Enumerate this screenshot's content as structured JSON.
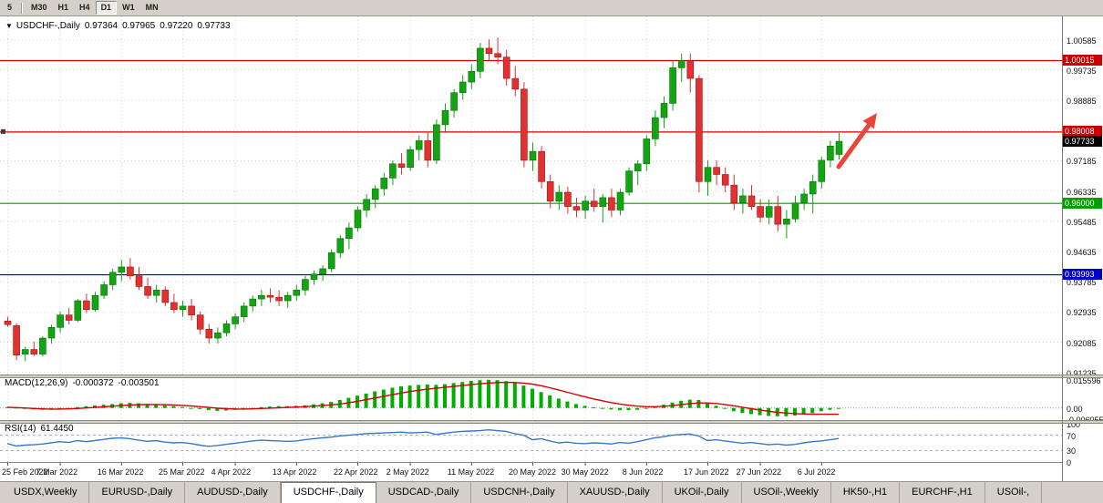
{
  "toolbar": {
    "timeframes": [
      "5",
      "M30",
      "H1",
      "H4",
      "D1",
      "W1",
      "MN"
    ],
    "active": "D1"
  },
  "chart": {
    "symbol_title": "USDCHF-,Daily",
    "open": "0.97364",
    "high": "0.97965",
    "low": "0.97220",
    "close": "0.97733",
    "dropdown_icon": "▼"
  },
  "price_axis": {
    "grid_labels": [
      "1.00585",
      "0.99735",
      "0.98885",
      "0.98035",
      "0.97185",
      "0.96335",
      "0.95485",
      "0.94635",
      "0.93785",
      "0.92935",
      "0.92085",
      "0.91235"
    ]
  },
  "levels": [
    {
      "label": "1.00015",
      "value": 1.00015,
      "color": "#cc0000",
      "type": "resistance"
    },
    {
      "label": "0.98008",
      "value": 0.98008,
      "color": "#cc0000",
      "type": "resistance"
    },
    {
      "label": "0.97733",
      "value": 0.97733,
      "color": "#000000",
      "type": "current"
    },
    {
      "label": "0.96000",
      "value": 0.96,
      "color": "#00a000",
      "type": "support"
    },
    {
      "label": "0.93993",
      "value": 0.93993,
      "color": "#0000cc",
      "type": "support"
    }
  ],
  "macd": {
    "name": "MACD(12,26,9)",
    "value_main": "-0.000372",
    "value_signal": "-0.003501",
    "axis_labels": [
      "0.015596",
      "0.00",
      "-0.006055"
    ]
  },
  "rsi": {
    "name": "RSI(14)",
    "value": "61.4450",
    "axis_labels": [
      "100",
      "70",
      "30",
      "0"
    ]
  },
  "tabs": [
    {
      "label": "USDX,Weekly",
      "active": false
    },
    {
      "label": "EURUSD-,Daily",
      "active": false
    },
    {
      "label": "AUDUSD-,Daily",
      "active": false
    },
    {
      "label": "USDCHF-,Daily",
      "active": true
    },
    {
      "label": "USDCAD-,Daily",
      "active": false
    },
    {
      "label": "USDCNH-,Daily",
      "active": false
    },
    {
      "label": "XAUUSD-,Daily",
      "active": false
    },
    {
      "label": "UKOil-,Daily",
      "active": false
    },
    {
      "label": "USOil-,Weekly",
      "active": false
    },
    {
      "label": "HK50-,H1",
      "active": false
    },
    {
      "label": "EURCHF-,H1",
      "active": false
    },
    {
      "label": "USOil-,",
      "active": false
    }
  ],
  "annotations": {
    "trend_arrow": {
      "color": "#e8453c",
      "direction": "up-right"
    }
  },
  "colors": {
    "bull": "#13a313",
    "bear": "#e23131",
    "bull_border": "#077407",
    "bear_border": "#9c1616",
    "macd_hist": "#00ae00",
    "macd_signal": "#d40000",
    "rsi_line": "#3a79c9",
    "grid": "#d2d2d2"
  },
  "chart_data": {
    "type": "candlestick",
    "symbol": "USDCHF-",
    "timeframe": "Daily",
    "y_axis_range": [
      0.9115,
      1.0125
    ],
    "x_tick_labels": [
      "25 Feb 2022",
      "7 Mar 2022",
      "16 Mar 2022",
      "25 Mar 2022",
      "4 Apr 2022",
      "13 Apr 2022",
      "22 Apr 2022",
      "2 May 2022",
      "11 May 2022",
      "20 May 2022",
      "30 May 2022",
      "8 Jun 2022",
      "17 Jun 2022",
      "27 Jun 2022",
      "6 Jul 2022"
    ],
    "x_tick_indices": [
      0,
      6,
      13,
      20,
      26,
      33,
      40,
      46,
      53,
      60,
      66,
      73,
      80,
      86,
      93
    ],
    "horizontal_lines": [
      1.00015,
      0.98008,
      0.96,
      0.93993
    ],
    "candles_ohlc": [
      [
        0.9268,
        0.928,
        0.9252,
        0.9258
      ],
      [
        0.9255,
        0.9262,
        0.9158,
        0.9172
      ],
      [
        0.9175,
        0.9196,
        0.9155,
        0.9188
      ],
      [
        0.9188,
        0.921,
        0.917,
        0.9175
      ],
      [
        0.9175,
        0.9225,
        0.9168,
        0.922
      ],
      [
        0.922,
        0.9258,
        0.9205,
        0.925
      ],
      [
        0.925,
        0.9295,
        0.9235,
        0.9285
      ],
      [
        0.9285,
        0.9305,
        0.9258,
        0.927
      ],
      [
        0.927,
        0.933,
        0.9265,
        0.9325
      ],
      [
        0.9325,
        0.9345,
        0.929,
        0.93
      ],
      [
        0.93,
        0.935,
        0.9295,
        0.934
      ],
      [
        0.934,
        0.938,
        0.933,
        0.937
      ],
      [
        0.937,
        0.9415,
        0.9355,
        0.9405
      ],
      [
        0.9405,
        0.944,
        0.938,
        0.942
      ],
      [
        0.942,
        0.9445,
        0.9385,
        0.9395
      ],
      [
        0.9395,
        0.942,
        0.9355,
        0.9365
      ],
      [
        0.9365,
        0.939,
        0.933,
        0.934
      ],
      [
        0.934,
        0.937,
        0.932,
        0.9355
      ],
      [
        0.9355,
        0.9365,
        0.931,
        0.932
      ],
      [
        0.932,
        0.9345,
        0.929,
        0.93
      ],
      [
        0.93,
        0.9325,
        0.928,
        0.931
      ],
      [
        0.931,
        0.933,
        0.927,
        0.9285
      ],
      [
        0.9285,
        0.9295,
        0.923,
        0.9245
      ],
      [
        0.9245,
        0.926,
        0.9205,
        0.922
      ],
      [
        0.922,
        0.925,
        0.9205,
        0.9235
      ],
      [
        0.9235,
        0.927,
        0.9225,
        0.926
      ],
      [
        0.926,
        0.929,
        0.9245,
        0.928
      ],
      [
        0.928,
        0.932,
        0.9265,
        0.931
      ],
      [
        0.931,
        0.934,
        0.9295,
        0.933
      ],
      [
        0.933,
        0.9355,
        0.931,
        0.934
      ],
      [
        0.934,
        0.936,
        0.932,
        0.9335
      ],
      [
        0.9335,
        0.9355,
        0.931,
        0.9325
      ],
      [
        0.9325,
        0.935,
        0.9305,
        0.934
      ],
      [
        0.934,
        0.937,
        0.9325,
        0.9355
      ],
      [
        0.9355,
        0.9395,
        0.934,
        0.9385
      ],
      [
        0.9385,
        0.941,
        0.937,
        0.94
      ],
      [
        0.94,
        0.9425,
        0.938,
        0.9415
      ],
      [
        0.9415,
        0.947,
        0.9405,
        0.946
      ],
      [
        0.946,
        0.951,
        0.9445,
        0.95
      ],
      [
        0.95,
        0.9545,
        0.947,
        0.953
      ],
      [
        0.953,
        0.959,
        0.952,
        0.958
      ],
      [
        0.958,
        0.9625,
        0.956,
        0.961
      ],
      [
        0.961,
        0.965,
        0.9585,
        0.964
      ],
      [
        0.964,
        0.9685,
        0.962,
        0.967
      ],
      [
        0.967,
        0.972,
        0.965,
        0.971
      ],
      [
        0.971,
        0.974,
        0.968,
        0.97
      ],
      [
        0.97,
        0.976,
        0.969,
        0.975
      ],
      [
        0.975,
        0.979,
        0.972,
        0.9775
      ],
      [
        0.9775,
        0.98,
        0.97,
        0.972
      ],
      [
        0.972,
        0.9835,
        0.971,
        0.982
      ],
      [
        0.982,
        0.988,
        0.98,
        0.986
      ],
      [
        0.986,
        0.992,
        0.984,
        0.991
      ],
      [
        0.991,
        0.996,
        0.989,
        0.994
      ],
      [
        0.994,
        0.999,
        0.992,
        0.997
      ],
      [
        0.997,
        1.005,
        0.995,
        1.0035
      ],
      [
        1.0035,
        1.006,
        1.0,
        1.002
      ],
      [
        1.002,
        1.0065,
        0.999,
        1.001
      ],
      [
        1.001,
        1.003,
        0.993,
        0.995
      ],
      [
        0.995,
        0.9985,
        0.99,
        0.992
      ],
      [
        0.992,
        0.994,
        0.97,
        0.972
      ],
      [
        0.972,
        0.977,
        0.969,
        0.9745
      ],
      [
        0.9745,
        0.976,
        0.964,
        0.966
      ],
      [
        0.966,
        0.968,
        0.9585,
        0.9605
      ],
      [
        0.9605,
        0.965,
        0.958,
        0.963
      ],
      [
        0.963,
        0.9645,
        0.957,
        0.959
      ],
      [
        0.959,
        0.9615,
        0.956,
        0.958
      ],
      [
        0.958,
        0.962,
        0.9555,
        0.9605
      ],
      [
        0.9605,
        0.964,
        0.9575,
        0.959
      ],
      [
        0.959,
        0.9625,
        0.9545,
        0.9615
      ],
      [
        0.9615,
        0.964,
        0.956,
        0.958
      ],
      [
        0.958,
        0.964,
        0.9565,
        0.963
      ],
      [
        0.963,
        0.97,
        0.962,
        0.969
      ],
      [
        0.969,
        0.972,
        0.965,
        0.971
      ],
      [
        0.971,
        0.979,
        0.969,
        0.978
      ],
      [
        0.978,
        0.986,
        0.976,
        0.984
      ],
      [
        0.984,
        0.99,
        0.981,
        0.988
      ],
      [
        0.988,
        1.0,
        0.986,
        0.998
      ],
      [
        0.998,
        1.002,
        0.994,
        1.0
      ],
      [
        1.0,
        1.002,
        0.991,
        0.995
      ],
      [
        0.995,
        0.996,
        0.963,
        0.966
      ],
      [
        0.966,
        0.972,
        0.962,
        0.97
      ],
      [
        0.97,
        0.972,
        0.965,
        0.968
      ],
      [
        0.968,
        0.97,
        0.963,
        0.965
      ],
      [
        0.965,
        0.968,
        0.958,
        0.96
      ],
      [
        0.96,
        0.964,
        0.957,
        0.962
      ],
      [
        0.962,
        0.965,
        0.958,
        0.959
      ],
      [
        0.959,
        0.961,
        0.9545,
        0.956
      ],
      [
        0.956,
        0.961,
        0.954,
        0.959
      ],
      [
        0.959,
        0.962,
        0.952,
        0.954
      ],
      [
        0.954,
        0.958,
        0.95,
        0.9555
      ],
      [
        0.9555,
        0.962,
        0.9545,
        0.96
      ],
      [
        0.96,
        0.964,
        0.958,
        0.9625
      ],
      [
        0.9625,
        0.968,
        0.957,
        0.966
      ],
      [
        0.966,
        0.973,
        0.964,
        0.972
      ],
      [
        0.972,
        0.9775,
        0.97,
        0.976
      ],
      [
        0.97364,
        0.97965,
        0.9722,
        0.97733
      ]
    ],
    "indicators": {
      "macd": {
        "histogram": [
          0.0005,
          0.0002,
          -0.0003,
          -0.0008,
          -0.001,
          -0.0008,
          -0.0004,
          0.0,
          0.0005,
          0.001,
          0.0014,
          0.0018,
          0.0022,
          0.0026,
          0.0028,
          0.0026,
          0.0022,
          0.0018,
          0.0014,
          0.001,
          0.0005,
          0.0,
          -0.0006,
          -0.0012,
          -0.0016,
          -0.0014,
          -0.001,
          -0.0005,
          0.0,
          0.0005,
          0.0008,
          0.001,
          0.001,
          0.0012,
          0.0015,
          0.002,
          0.0026,
          0.0034,
          0.0044,
          0.0056,
          0.0068,
          0.008,
          0.0092,
          0.0102,
          0.0112,
          0.012,
          0.0124,
          0.0128,
          0.013,
          0.0128,
          0.0132,
          0.0138,
          0.0144,
          0.015,
          0.0154,
          0.0156,
          0.0154,
          0.0148,
          0.0138,
          0.0124,
          0.0106,
          0.0088,
          0.007,
          0.0052,
          0.0036,
          0.0022,
          0.0012,
          0.0004,
          -0.0002,
          -0.0008,
          -0.0012,
          -0.0012,
          -0.001,
          -0.0004,
          0.0006,
          0.0018,
          0.003,
          0.004,
          0.0046,
          0.0044,
          0.003,
          0.0012,
          -0.0004,
          -0.0018,
          -0.0028,
          -0.0034,
          -0.004,
          -0.0044,
          -0.0046,
          -0.0046,
          -0.0042,
          -0.0036,
          -0.0028,
          -0.0018,
          -0.001,
          -0.000372
        ],
        "signal": [
          0.0004,
          0.0002,
          0.0,
          -0.0003,
          -0.0005,
          -0.0007,
          -0.0006,
          -0.0005,
          -0.0003,
          0.0,
          0.0003,
          0.0006,
          0.001,
          0.0013,
          0.0016,
          0.0018,
          0.0019,
          0.0019,
          0.0018,
          0.0016,
          0.0014,
          0.0011,
          0.0007,
          0.0003,
          -0.0001,
          -0.0004,
          -0.0006,
          -0.0006,
          -0.0005,
          -0.0003,
          -0.0001,
          0.0001,
          0.0003,
          0.0005,
          0.0007,
          0.001,
          0.0013,
          0.0017,
          0.0022,
          0.0029,
          0.0037,
          0.0046,
          0.0055,
          0.0064,
          0.0074,
          0.0083,
          0.0091,
          0.0098,
          0.0104,
          0.0109,
          0.0114,
          0.0119,
          0.0124,
          0.0129,
          0.0134,
          0.0138,
          0.0141,
          0.0142,
          0.0141,
          0.0138,
          0.0132,
          0.0123,
          0.0112,
          0.01,
          0.0087,
          0.0074,
          0.0062,
          0.005,
          0.004,
          0.003,
          0.0022,
          0.0015,
          0.001,
          0.0007,
          0.0007,
          0.0009,
          0.0013,
          0.0018,
          0.0024,
          0.0028,
          0.0028,
          0.0025,
          0.0019,
          0.0012,
          0.0004,
          -0.0004,
          -0.0011,
          -0.0018,
          -0.0024,
          -0.0028,
          -0.0031,
          -0.0033,
          -0.0034,
          -0.0035,
          -0.0035,
          -0.003501
        ]
      },
      "rsi": {
        "values": [
          48,
          42,
          44,
          45,
          47,
          50,
          53,
          51,
          56,
          53,
          56,
          59,
          62,
          63,
          61,
          57,
          54,
          56,
          52,
          50,
          51,
          48,
          44,
          41,
          43,
          46,
          49,
          52,
          55,
          57,
          56,
          55,
          54,
          55,
          58,
          61,
          63,
          65,
          68,
          70,
          72,
          74,
          75,
          76,
          77,
          78,
          76,
          77,
          78,
          72,
          75,
          78,
          80,
          81,
          82,
          84,
          82,
          80,
          74,
          70,
          58,
          61,
          55,
          50,
          52,
          49,
          48,
          50,
          49,
          47,
          51,
          49,
          53,
          58,
          63,
          66,
          70,
          72,
          73,
          68,
          56,
          58,
          55,
          52,
          49,
          51,
          48,
          45,
          47,
          44,
          46,
          50,
          53,
          55,
          58,
          61.45
        ]
      }
    }
  }
}
